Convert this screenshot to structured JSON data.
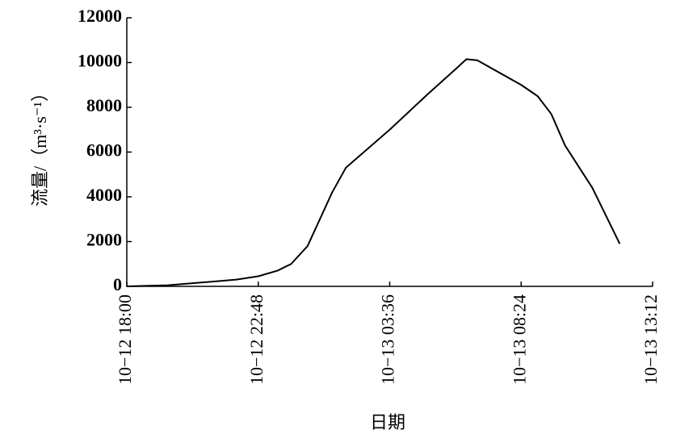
{
  "chart_data": {
    "type": "line",
    "x_label": "日期",
    "y_label": "流量/（m³·s⁻¹）",
    "x": [
      "10−12 18:00",
      "10−12 19:30",
      "10−12 21:00",
      "10−12 22:00",
      "10−12 22:48",
      "10−12 23:30",
      "10−13 00:00",
      "10−13 00:36",
      "10−13 01:30",
      "10−13 02:00",
      "10−13 03:36",
      "10−13 05:00",
      "10−13 06:00",
      "10−13 06:24",
      "10−13 06:48",
      "10−13 08:24",
      "10−13 09:00",
      "10−13 09:30",
      "10−13 10:00",
      "10−13 11:00",
      "10−13 12:00"
    ],
    "series": [
      {
        "name": "流量",
        "color": "#000000",
        "values": [
          0,
          50,
          200,
          300,
          450,
          700,
          1000,
          1800,
          4200,
          5300,
          7000,
          8600,
          9700,
          10150,
          10100,
          9000,
          8500,
          7700,
          6300,
          4400,
          1900
        ]
      }
    ],
    "xlim": [
      "10−12 18:00",
      "10−13 13:12"
    ],
    "xticks": [
      "10−12 18:00",
      "10−12 22:48",
      "10−13 03:36",
      "10−13 08:24",
      "10−13 13:12"
    ],
    "ylim": [
      0,
      12000
    ],
    "yticks": [
      0,
      2000,
      4000,
      6000,
      8000,
      10000,
      12000
    ]
  }
}
